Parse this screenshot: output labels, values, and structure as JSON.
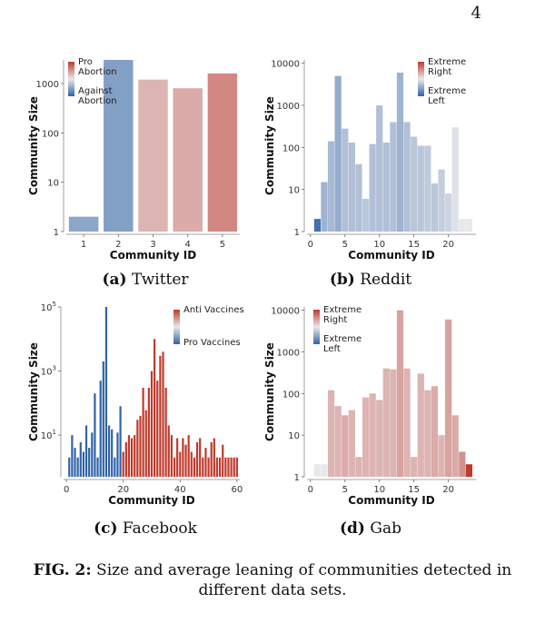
{
  "page_number": "4",
  "figure_caption": {
    "label": "FIG. 2:",
    "text": "Size and average leaning of communities detected in different data sets."
  },
  "colors": {
    "red": "#c0392b",
    "blue": "#2f63a6",
    "light": "#e8e8ec"
  },
  "chart_data": [
    {
      "type": "bar",
      "subcaption_label": "(a)",
      "subcaption_name": "Twitter",
      "xlabel": "Community ID",
      "ylabel": "Community Size",
      "yscale": "log",
      "ylim": [
        1,
        3000
      ],
      "yticks": [
        {
          "value": 1,
          "label": "1"
        },
        {
          "value": 10,
          "label": "10"
        },
        {
          "value": 100,
          "label": "100"
        },
        {
          "value": 1000,
          "label": "1000"
        }
      ],
      "categories": [
        "1",
        "2",
        "3",
        "4",
        "5"
      ],
      "values": [
        2,
        3000,
        1200,
        800,
        1600
      ],
      "leaning": [
        -0.5,
        -0.55,
        0.3,
        0.35,
        0.55
      ],
      "legend": {
        "top": "Pro\nAbortion",
        "bottom": "Against\nAbortion"
      }
    },
    {
      "type": "bar",
      "subcaption_label": "(b)",
      "subcaption_name": "Reddit",
      "xlabel": "Community ID",
      "ylabel": "Community Size",
      "yscale": "log",
      "ylim": [
        1,
        12000
      ],
      "yticks": [
        {
          "value": 1,
          "label": "1"
        },
        {
          "value": 10,
          "label": "10"
        },
        {
          "value": 100,
          "label": "100"
        },
        {
          "value": 1000,
          "label": "1000"
        },
        {
          "value": 10000,
          "label": "10000"
        }
      ],
      "xticks": [
        0,
        5,
        10,
        15,
        20
      ],
      "xlim": [
        -0.5,
        24
      ],
      "x": [
        1,
        2,
        3,
        4,
        5,
        6,
        7,
        8,
        9,
        10,
        11,
        12,
        13,
        14,
        15,
        16,
        17,
        18,
        19,
        20,
        21,
        22,
        23
      ],
      "values": [
        2,
        15,
        140,
        5000,
        280,
        130,
        40,
        6,
        120,
        1000,
        130,
        400,
        6000,
        400,
        180,
        110,
        110,
        14,
        30,
        8,
        300,
        2,
        2
      ],
      "leaning": [
        -0.9,
        -0.4,
        -0.35,
        -0.45,
        -0.3,
        -0.3,
        -0.3,
        -0.25,
        -0.3,
        -0.3,
        -0.3,
        -0.3,
        -0.4,
        -0.3,
        -0.25,
        -0.25,
        -0.22,
        -0.25,
        -0.2,
        -0.15,
        -0.05,
        0.0,
        0.0
      ],
      "legend": {
        "top": "Extreme\nRight",
        "bottom": "Extreme\nLeft"
      }
    },
    {
      "type": "bar",
      "subcaption_label": "(c)",
      "subcaption_name": "Facebook",
      "xlabel": "Community ID",
      "ylabel": "Community Size",
      "yscale": "log",
      "ylim": [
        0.5,
        100000
      ],
      "yticks": [
        {
          "value": 10,
          "base": "10",
          "exp": "1"
        },
        {
          "value": 1000,
          "base": "10",
          "exp": "3"
        },
        {
          "value": 100000,
          "base": "10",
          "exp": "5"
        }
      ],
      "xticks": [
        0,
        20,
        40,
        60
      ],
      "xlim": [
        -1,
        61
      ],
      "x": [
        1,
        2,
        3,
        4,
        5,
        6,
        7,
        8,
        9,
        10,
        11,
        12,
        13,
        14,
        15,
        16,
        17,
        18,
        19,
        20,
        21,
        22,
        23,
        24,
        25,
        26,
        27,
        28,
        29,
        30,
        31,
        32,
        33,
        34,
        35,
        36,
        37,
        38,
        39,
        40,
        41,
        42,
        43,
        44,
        45,
        46,
        47,
        48,
        49,
        50,
        51,
        52,
        53,
        54,
        55,
        56,
        57,
        58,
        59,
        60
      ],
      "values": [
        2,
        10,
        4,
        2,
        6,
        3,
        20,
        4,
        12,
        200,
        2,
        500,
        2000,
        100000,
        20,
        15,
        2,
        12,
        80,
        3,
        6,
        10,
        8,
        10,
        30,
        40,
        300,
        60,
        300,
        1000,
        10000,
        500,
        3000,
        4000,
        300,
        20,
        10,
        2,
        8,
        3,
        8,
        5,
        10,
        3,
        2,
        6,
        8,
        2,
        4,
        2,
        6,
        8,
        2,
        2,
        5,
        2,
        2,
        2,
        2,
        2
      ],
      "leaning": [
        -1,
        -1,
        -1,
        -1,
        -1,
        -1,
        -1,
        -1,
        -1,
        -1,
        -1,
        -1,
        -1,
        -1,
        -1,
        -1,
        -1,
        -1,
        -1,
        1,
        1,
        1,
        1,
        1,
        1,
        1,
        1,
        1,
        1,
        1,
        1,
        1,
        1,
        1,
        1,
        1,
        1,
        1,
        1,
        1,
        1,
        1,
        1,
        1,
        1,
        1,
        1,
        1,
        1,
        1,
        1,
        1,
        1,
        1,
        1,
        1,
        1,
        1,
        1,
        1
      ],
      "legend": {
        "top": "Anti Vaccines",
        "bottom": "Pro Vaccines"
      }
    },
    {
      "type": "bar",
      "subcaption_label": "(d)",
      "subcaption_name": "Gab",
      "xlabel": "Community ID",
      "ylabel": "Community Size",
      "yscale": "log",
      "ylim": [
        1,
        12000
      ],
      "yticks": [
        {
          "value": 1,
          "label": "1"
        },
        {
          "value": 10,
          "label": "10"
        },
        {
          "value": 100,
          "label": "100"
        },
        {
          "value": 1000,
          "label": "1000"
        },
        {
          "value": 10000,
          "label": "10000"
        }
      ],
      "xticks": [
        0,
        5,
        10,
        15,
        20
      ],
      "xlim": [
        -0.5,
        24
      ],
      "x": [
        1,
        2,
        3,
        4,
        5,
        6,
        7,
        8,
        9,
        10,
        11,
        12,
        13,
        14,
        15,
        16,
        17,
        18,
        19,
        20,
        21,
        22,
        23
      ],
      "values": [
        2,
        2,
        120,
        50,
        30,
        40,
        3,
        80,
        100,
        70,
        400,
        380,
        10000,
        400,
        3,
        300,
        120,
        150,
        10,
        6000,
        30,
        4,
        2
      ],
      "leaning": [
        0.0,
        0.0,
        0.3,
        0.3,
        0.35,
        0.3,
        0.3,
        0.3,
        0.3,
        0.3,
        0.3,
        0.3,
        0.4,
        0.3,
        0.3,
        0.3,
        0.3,
        0.35,
        0.3,
        0.4,
        0.35,
        0.5,
        1.0
      ],
      "legend": {
        "top": "Extreme\nRight",
        "bottom": "Extreme\nLeft"
      }
    }
  ]
}
